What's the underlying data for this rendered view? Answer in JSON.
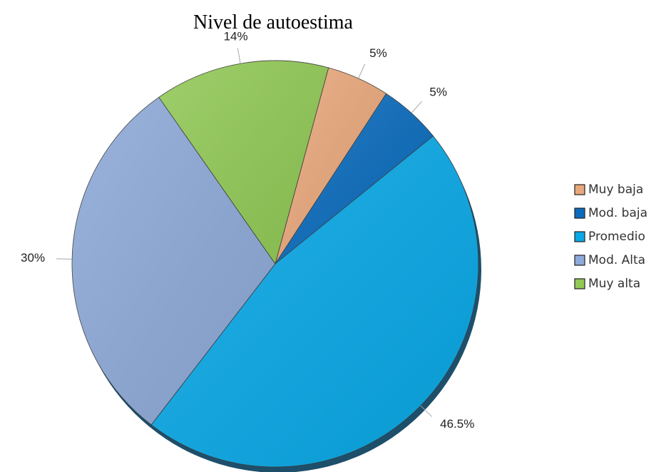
{
  "chart_data": {
    "type": "pie",
    "title": "Nivel de autoestima",
    "categories": [
      "Muy baja",
      "Mod. baja",
      "Promedio",
      "Mod. Alta",
      "Muy alta"
    ],
    "values": [
      5,
      5,
      46.5,
      30,
      14
    ],
    "value_labels": [
      "5%",
      "5%",
      "46.5%",
      "30%",
      "14%"
    ],
    "colors": [
      "#e9a87c",
      "#0b6cbd",
      "#0aa8e6",
      "#8eaad8",
      "#92c957"
    ],
    "legend": "right"
  }
}
